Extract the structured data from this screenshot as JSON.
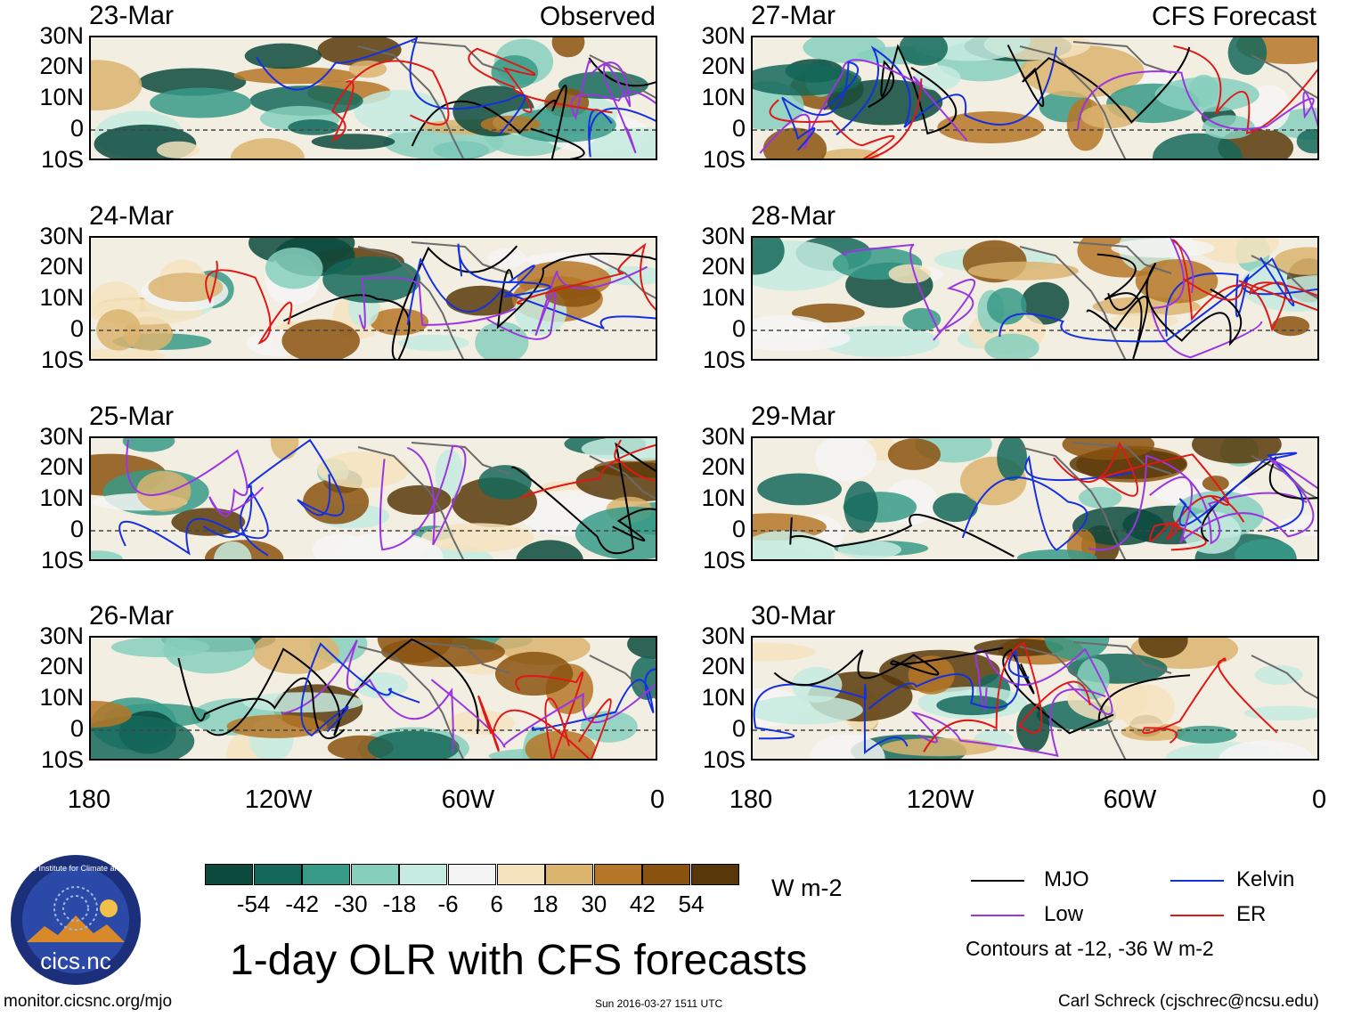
{
  "title": "1-day OLR with CFS forecasts",
  "left_header": "Observed",
  "right_header": "CFS Forecast",
  "left_panels": [
    "23-Mar",
    "24-Mar",
    "25-Mar",
    "26-Mar"
  ],
  "right_panels": [
    "27-Mar",
    "28-Mar",
    "29-Mar",
    "30-Mar"
  ],
  "lat_labels": [
    "30N",
    "20N",
    "10N",
    "0",
    "10S"
  ],
  "lon_labels": [
    "180",
    "120W",
    "60W",
    "0"
  ],
  "colorbar": {
    "colors": [
      "#0b4a3d",
      "#14685a",
      "#379a87",
      "#86cfbd",
      "#c6ebe1",
      "#f4f4f4",
      "#f5e3be",
      "#dbb46e",
      "#b57727",
      "#8a520f",
      "#583809"
    ],
    "values": [
      "-54",
      "-42",
      "-30",
      "-18",
      "-6",
      "6",
      "18",
      "30",
      "42",
      "54"
    ],
    "units": "W m-2"
  },
  "legend": {
    "mjo": {
      "label": "MJO",
      "color": "#000000"
    },
    "kelvin": {
      "label": "Kelvin",
      "color": "#1530e0"
    },
    "low": {
      "label": "Low",
      "color": "#9b35e0"
    },
    "er": {
      "label": "ER",
      "color": "#e01818"
    },
    "note": "Contours at -12, -36 W m-2"
  },
  "logo_text": "cics.nc",
  "logo_ring": "Cooperative Institute for Climate and Satellites",
  "footer_left": "monitor.cicsnc.org/mjo",
  "footer_center": "Sun 2016-03-27 1511 UTC",
  "footer_right": "Carl Schreck (cjschrec@ncsu.edu)"
}
